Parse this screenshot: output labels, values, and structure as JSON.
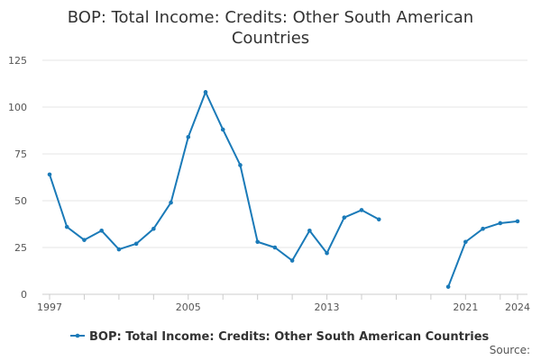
{
  "chart_data": {
    "type": "line",
    "title_lines": [
      "BOP: Total Income: Credits: Other South American",
      "Countries"
    ],
    "xlabel": "",
    "ylabel": "",
    "x_range": [
      1997,
      2024
    ],
    "y_range": [
      0,
      125
    ],
    "x_tick_labels": [
      1997,
      2005,
      2013,
      2021,
      2024
    ],
    "y_ticks": [
      0,
      25,
      50,
      75,
      100,
      125
    ],
    "grid": "horizontal",
    "legend_position": "bottom",
    "series": [
      {
        "name": "BOP: Total Income: Credits: Other South American Countries",
        "color": "#1a7ab8",
        "points": [
          [
            1997,
            64
          ],
          [
            1998,
            36
          ],
          [
            1999,
            29
          ],
          [
            2000,
            34
          ],
          [
            2001,
            24
          ],
          [
            2002,
            27
          ],
          [
            2003,
            35
          ],
          [
            2004,
            49
          ],
          [
            2005,
            84
          ],
          [
            2006,
            108
          ],
          [
            2007,
            88
          ],
          [
            2008,
            69
          ],
          [
            2009,
            28
          ],
          [
            2010,
            25
          ],
          [
            2011,
            18
          ],
          [
            2012,
            34
          ],
          [
            2013,
            22
          ],
          [
            2014,
            41
          ],
          [
            2015,
            45
          ],
          [
            2016,
            40
          ],
          [
            2017,
            null
          ],
          [
            2018,
            null
          ],
          [
            2019,
            null
          ],
          [
            2020,
            4
          ],
          [
            2021,
            28
          ],
          [
            2022,
            35
          ],
          [
            2023,
            38
          ],
          [
            2024,
            39
          ]
        ]
      }
    ]
  },
  "source_label": "Source:"
}
